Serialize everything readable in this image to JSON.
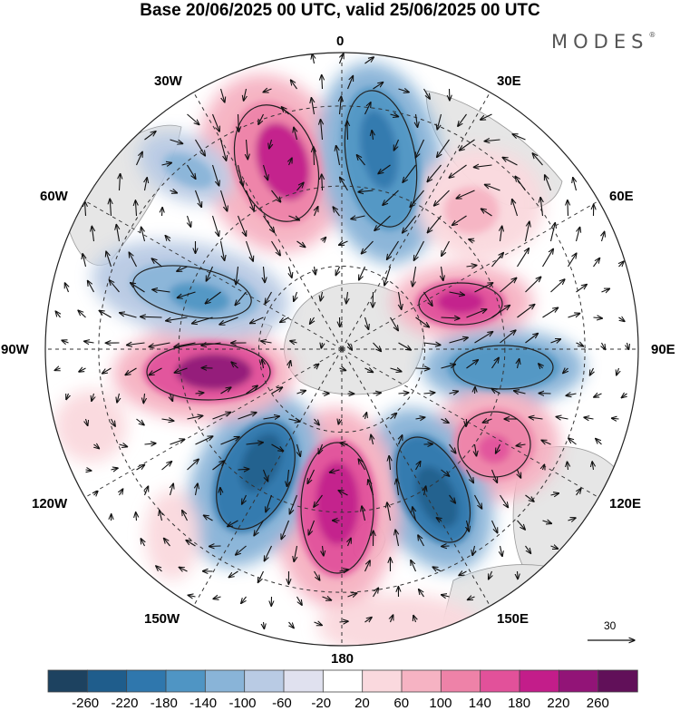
{
  "title": "Base 20/06/2025 00 UTC, valid 25/06/2025 00 UTC",
  "brand": "MODES",
  "brand_mark": "®",
  "map": {
    "projection": "polar-stereographic",
    "hemisphere": "south",
    "center": "South Pole",
    "longitude_labels": [
      {
        "name": "lon-0",
        "text": "0"
      },
      {
        "name": "lon-30e",
        "text": "30E"
      },
      {
        "name": "lon-60e",
        "text": "60E"
      },
      {
        "name": "lon-90e",
        "text": "90E"
      },
      {
        "name": "lon-120e",
        "text": "120E"
      },
      {
        "name": "lon-150e",
        "text": "150E"
      },
      {
        "name": "lon-180",
        "text": "180"
      },
      {
        "name": "lon-150w",
        "text": "150W"
      },
      {
        "name": "lon-120w",
        "text": "120W"
      },
      {
        "name": "lon-90w",
        "text": "90W"
      },
      {
        "name": "lon-60w",
        "text": "60W"
      },
      {
        "name": "lon-30w",
        "text": "30W"
      }
    ],
    "anomaly_pattern": [
      {
        "sign": "positive",
        "sector": "25W-10W"
      },
      {
        "sign": "negative",
        "sector": "0-25E"
      },
      {
        "sign": "positive",
        "sector": "40E-60E"
      },
      {
        "sign": "positive",
        "sector": "60E-80E"
      },
      {
        "sign": "negative",
        "sector": "85E-100E"
      },
      {
        "sign": "positive",
        "sector": "115E-130E"
      },
      {
        "sign": "negative",
        "sector": "140E-160E"
      },
      {
        "sign": "positive",
        "sector": "165E-185E"
      },
      {
        "sign": "negative",
        "sector": "140W-120W"
      },
      {
        "sign": "positive",
        "sector": "110W-90W"
      },
      {
        "sign": "negative",
        "sector": "80W-60W"
      },
      {
        "sign": "negative",
        "sector": "45W-35W"
      }
    ],
    "reference_vector": "30"
  },
  "colorbar": {
    "ticks": [
      "-260",
      "-220",
      "-180",
      "-140",
      "-100",
      "-60",
      "-20",
      "20",
      "60",
      "100",
      "140",
      "180",
      "220",
      "260"
    ],
    "colors": [
      "#1d4260",
      "#1f5d8c",
      "#2f77ad",
      "#4f95c4",
      "#89b4d8",
      "#b9cbe4",
      "#e0e1ef",
      "#ffffff",
      "#fad9de",
      "#f6b3c3",
      "#ee82a8",
      "#e2519a",
      "#c31d8a",
      "#921477",
      "#611059"
    ]
  }
}
